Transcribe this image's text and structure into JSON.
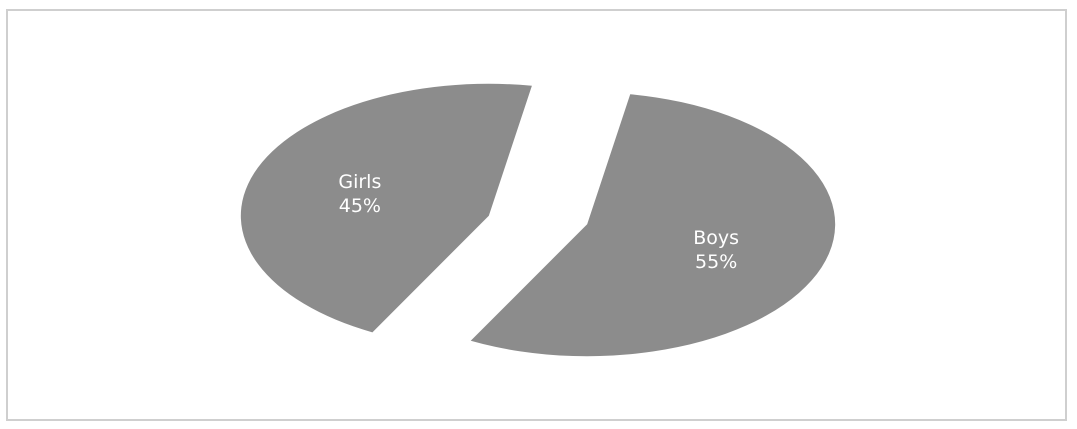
{
  "chart_data": {
    "type": "pie",
    "title": "",
    "exploded": true,
    "slices": [
      {
        "category": "Girls",
        "percent_label": "45%",
        "value": 45,
        "color": "#8c8c8c"
      },
      {
        "category": "Boys",
        "percent_label": "55%",
        "value": 55,
        "color": "#8c8c8c"
      }
    ]
  }
}
